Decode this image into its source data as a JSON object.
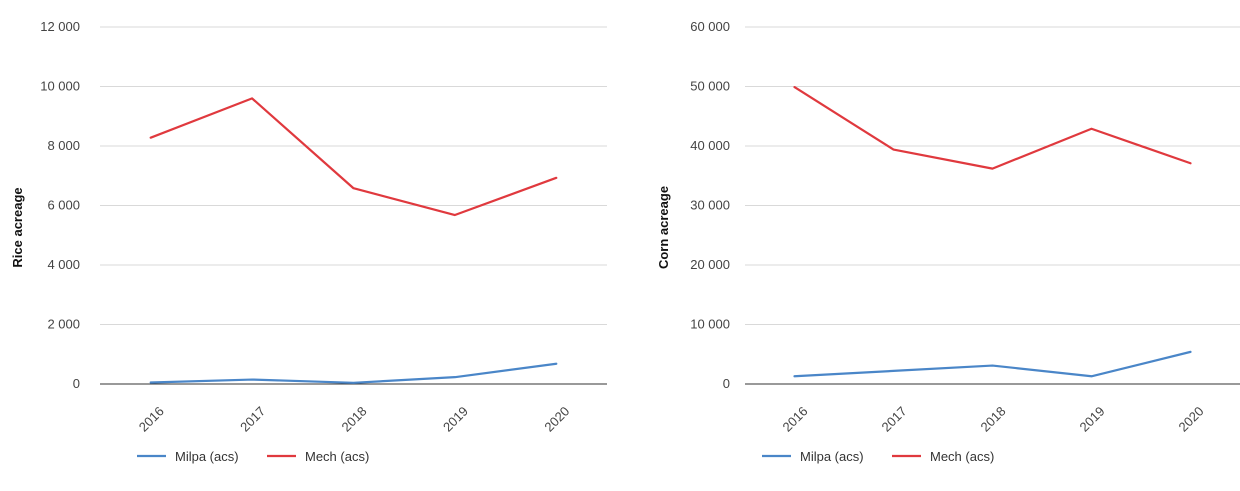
{
  "chart_data": [
    {
      "type": "line",
      "ylabel": "Rice acreage",
      "xlabel": "",
      "title": "",
      "categories": [
        "2016",
        "2017",
        "2018",
        "2019",
        "2020"
      ],
      "ylim": [
        0,
        12000
      ],
      "yticks": [
        0,
        2000,
        4000,
        6000,
        8000,
        10000,
        12000
      ],
      "ytick_labels": [
        "0",
        "2 000",
        "4 000",
        "6 000",
        "8 000",
        "10 000",
        "12 000"
      ],
      "grid": "horizontal",
      "legend": "bottom-left",
      "series": [
        {
          "name": "Milpa (acs)",
          "color": "#4a86c8",
          "values": [
            50,
            150,
            40,
            230,
            680
          ]
        },
        {
          "name": "Mech (acs)",
          "color": "#e0393e",
          "values": [
            8280,
            9600,
            6580,
            5680,
            6930
          ]
        }
      ]
    },
    {
      "type": "line",
      "ylabel": "Corn acreage",
      "xlabel": "",
      "title": "",
      "categories": [
        "2016",
        "2017",
        "2018",
        "2019",
        "2020"
      ],
      "ylim": [
        0,
        60000
      ],
      "yticks": [
        0,
        10000,
        20000,
        30000,
        40000,
        50000,
        60000
      ],
      "ytick_labels": [
        "0",
        "10 000",
        "20 000",
        "30 000",
        "40 000",
        "50 000",
        "60 000"
      ],
      "grid": "horizontal",
      "legend": "bottom-left",
      "series": [
        {
          "name": "Milpa (acs)",
          "color": "#4a86c8",
          "values": [
            1300,
            2200,
            3100,
            1300,
            5400
          ]
        },
        {
          "name": "Mech (acs)",
          "color": "#e0393e",
          "values": [
            49900,
            39400,
            36200,
            42900,
            37100
          ]
        }
      ]
    }
  ]
}
